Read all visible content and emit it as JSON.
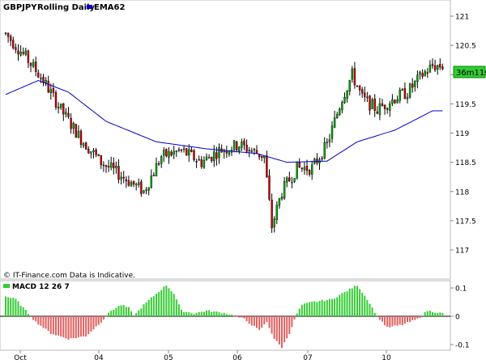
{
  "header": {
    "symbol": "GBPJPY",
    "mode": "Rolling Daily",
    "ema_label": "EMA62"
  },
  "countdown": "36m11s",
  "footer_note": "© IT-Finance.com Data is Indicative.",
  "colors": {
    "up": "#00aa00",
    "down": "#cc0000",
    "ema": "#0000cc",
    "macd_pos": "#33cc33",
    "macd_neg": "#e06060",
    "countdown_bg": "#33cc33"
  },
  "chart_data": [
    {
      "type": "candlestick",
      "title": "GBPJPY  Rolling Daily",
      "series": [
        {
          "name": "EMA62",
          "type": "line"
        }
      ],
      "ylim": [
        116.8,
        121.25
      ],
      "y_ticks": [
        "121",
        "120.5",
        "120",
        "119.5",
        "119",
        "118.5",
        "118",
        "117.5",
        "117"
      ],
      "x_tick_labels": [
        "Oct",
        "04",
        "05",
        "06",
        "07",
        "10"
      ],
      "price_anchors": [
        {
          "x": 0,
          "y": 120.7
        },
        {
          "x": 8,
          "y": 120.3
        },
        {
          "x": 15,
          "y": 119.9
        },
        {
          "x": 22,
          "y": 119.4
        },
        {
          "x": 30,
          "y": 118.9
        },
        {
          "x": 38,
          "y": 118.5
        },
        {
          "x": 45,
          "y": 118.3
        },
        {
          "x": 55,
          "y": 118.0
        },
        {
          "x": 62,
          "y": 118.6
        },
        {
          "x": 70,
          "y": 118.7
        },
        {
          "x": 78,
          "y": 118.5
        },
        {
          "x": 85,
          "y": 118.7
        },
        {
          "x": 93,
          "y": 118.8
        },
        {
          "x": 98,
          "y": 118.7
        },
        {
          "x": 103,
          "y": 118.6
        },
        {
          "x": 106,
          "y": 117.4
        },
        {
          "x": 110,
          "y": 118.0
        },
        {
          "x": 116,
          "y": 118.4
        },
        {
          "x": 122,
          "y": 118.4
        },
        {
          "x": 128,
          "y": 118.8
        },
        {
          "x": 134,
          "y": 119.6
        },
        {
          "x": 138,
          "y": 120.0
        },
        {
          "x": 142,
          "y": 119.6
        },
        {
          "x": 148,
          "y": 119.4
        },
        {
          "x": 155,
          "y": 119.6
        },
        {
          "x": 160,
          "y": 119.7
        },
        {
          "x": 166,
          "y": 120.0
        },
        {
          "x": 170,
          "y": 120.15
        }
      ],
      "ema_anchors": [
        {
          "x": 0,
          "y": 119.66
        },
        {
          "x": 13,
          "y": 119.9
        },
        {
          "x": 25,
          "y": 119.7
        },
        {
          "x": 40,
          "y": 119.2
        },
        {
          "x": 60,
          "y": 118.85
        },
        {
          "x": 80,
          "y": 118.73
        },
        {
          "x": 100,
          "y": 118.65
        },
        {
          "x": 112,
          "y": 118.5
        },
        {
          "x": 128,
          "y": 118.52
        },
        {
          "x": 140,
          "y": 118.85
        },
        {
          "x": 155,
          "y": 119.05
        },
        {
          "x": 170,
          "y": 119.38
        }
      ]
    },
    {
      "type": "bar",
      "title": "MACD 12 26 7",
      "series": [
        {
          "name": "MACD 12 26 7"
        }
      ],
      "ylim": [
        -0.11,
        0.115
      ],
      "y_ticks": [
        "0.1",
        "0",
        "-0.1"
      ],
      "macd_anchors": [
        {
          "x": 0,
          "y": 0.07
        },
        {
          "x": 4,
          "y": 0.06
        },
        {
          "x": 8,
          "y": 0.02
        },
        {
          "x": 12,
          "y": -0.02
        },
        {
          "x": 18,
          "y": -0.06
        },
        {
          "x": 25,
          "y": -0.08
        },
        {
          "x": 32,
          "y": -0.07
        },
        {
          "x": 38,
          "y": -0.02
        },
        {
          "x": 42,
          "y": 0.02
        },
        {
          "x": 46,
          "y": 0.04
        },
        {
          "x": 49,
          "y": 0.03
        },
        {
          "x": 51,
          "y": 0.0
        },
        {
          "x": 55,
          "y": 0.04
        },
        {
          "x": 60,
          "y": 0.08
        },
        {
          "x": 64,
          "y": 0.11
        },
        {
          "x": 67,
          "y": 0.08
        },
        {
          "x": 70,
          "y": 0.02
        },
        {
          "x": 75,
          "y": 0.01
        },
        {
          "x": 80,
          "y": 0.02
        },
        {
          "x": 88,
          "y": 0.01
        },
        {
          "x": 95,
          "y": -0.01
        },
        {
          "x": 98,
          "y": -0.03
        },
        {
          "x": 101,
          "y": -0.05
        },
        {
          "x": 104,
          "y": -0.02
        },
        {
          "x": 107,
          "y": -0.08
        },
        {
          "x": 110,
          "y": -0.11
        },
        {
          "x": 113,
          "y": -0.06
        },
        {
          "x": 116,
          "y": 0.01
        },
        {
          "x": 118,
          "y": 0.04
        },
        {
          "x": 122,
          "y": 0.05
        },
        {
          "x": 130,
          "y": 0.06
        },
        {
          "x": 136,
          "y": 0.09
        },
        {
          "x": 140,
          "y": 0.11
        },
        {
          "x": 144,
          "y": 0.06
        },
        {
          "x": 148,
          "y": 0.0
        },
        {
          "x": 152,
          "y": -0.04
        },
        {
          "x": 158,
          "y": -0.03
        },
        {
          "x": 164,
          "y": -0.01
        },
        {
          "x": 168,
          "y": 0.02
        },
        {
          "x": 174,
          "y": 0.01
        }
      ]
    }
  ]
}
